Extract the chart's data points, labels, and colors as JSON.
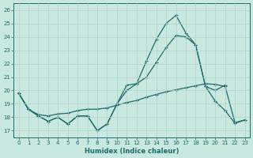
{
  "xlabel": "Humidex (Indice chaleur)",
  "xlim": [
    -0.5,
    23.5
  ],
  "ylim": [
    16.5,
    26.5
  ],
  "yticks": [
    17,
    18,
    19,
    20,
    21,
    22,
    23,
    24,
    25,
    26
  ],
  "xticks": [
    0,
    1,
    2,
    3,
    4,
    5,
    6,
    7,
    8,
    9,
    10,
    11,
    12,
    13,
    14,
    15,
    16,
    17,
    18,
    19,
    20,
    21,
    22,
    23
  ],
  "bg_color": "#c8e8e0",
  "line_color": "#1a6b6b",
  "grid_color": "#b0d0cc",
  "line1_x": [
    0,
    1,
    2,
    3,
    4,
    5,
    6,
    7,
    8,
    9,
    10,
    11,
    12,
    13,
    14,
    15,
    16,
    17,
    18,
    19,
    20,
    21
  ],
  "line1_y": [
    19.8,
    18.6,
    18.1,
    17.7,
    18.0,
    17.5,
    18.1,
    18.1,
    17.0,
    17.5,
    19.0,
    20.4,
    20.5,
    22.2,
    23.8,
    25.0,
    25.6,
    24.3,
    23.4,
    20.3,
    20.0,
    20.4
  ],
  "line2_x": [
    0,
    1,
    2,
    3,
    4,
    5,
    6,
    7,
    8,
    9,
    10,
    11,
    12,
    13,
    14,
    15,
    16,
    17,
    18,
    19,
    20,
    21,
    22,
    23
  ],
  "line2_y": [
    19.8,
    18.6,
    18.2,
    18.1,
    18.25,
    18.3,
    18.5,
    18.6,
    18.6,
    18.7,
    18.9,
    19.1,
    19.25,
    19.5,
    19.7,
    19.9,
    20.05,
    20.2,
    20.35,
    20.5,
    20.45,
    20.3,
    17.6,
    17.8
  ],
  "line3_x": [
    0,
    1,
    2,
    3,
    4,
    5,
    6,
    7,
    8,
    9,
    10,
    11,
    12,
    13,
    14,
    15,
    16,
    17,
    18,
    19,
    20,
    21,
    22,
    23
  ],
  "line3_y": [
    19.8,
    18.6,
    18.1,
    17.7,
    18.0,
    17.5,
    18.1,
    18.1,
    17.0,
    17.5,
    19.0,
    20.0,
    20.5,
    21.0,
    22.1,
    23.2,
    24.1,
    24.0,
    23.4,
    20.3,
    19.2,
    18.5,
    17.55,
    17.8
  ]
}
